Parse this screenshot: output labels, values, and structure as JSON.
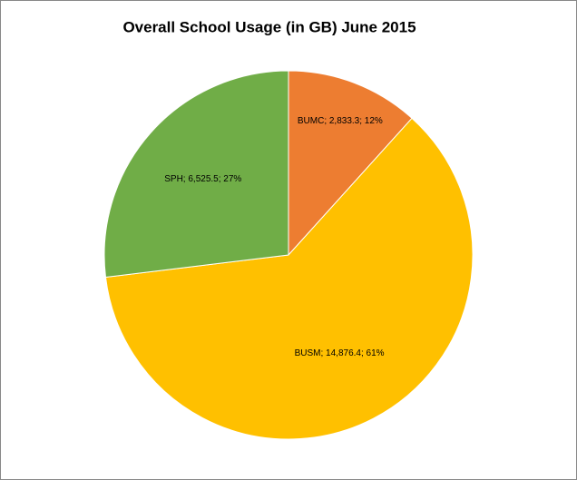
{
  "chart_data": {
    "type": "pie",
    "title": "Overall School Usage (in GB) June 2015",
    "values": [
      2833.3,
      14876.4,
      6525.5
    ],
    "value_labels": [
      "BUMC; 2,833.3; 12%",
      "BUSM; 14,876.4; 61%",
      "SPH; 6,525.5; 27%"
    ],
    "colors": [
      "#ed7d31",
      "#ffc000",
      "#70ad47"
    ]
  }
}
